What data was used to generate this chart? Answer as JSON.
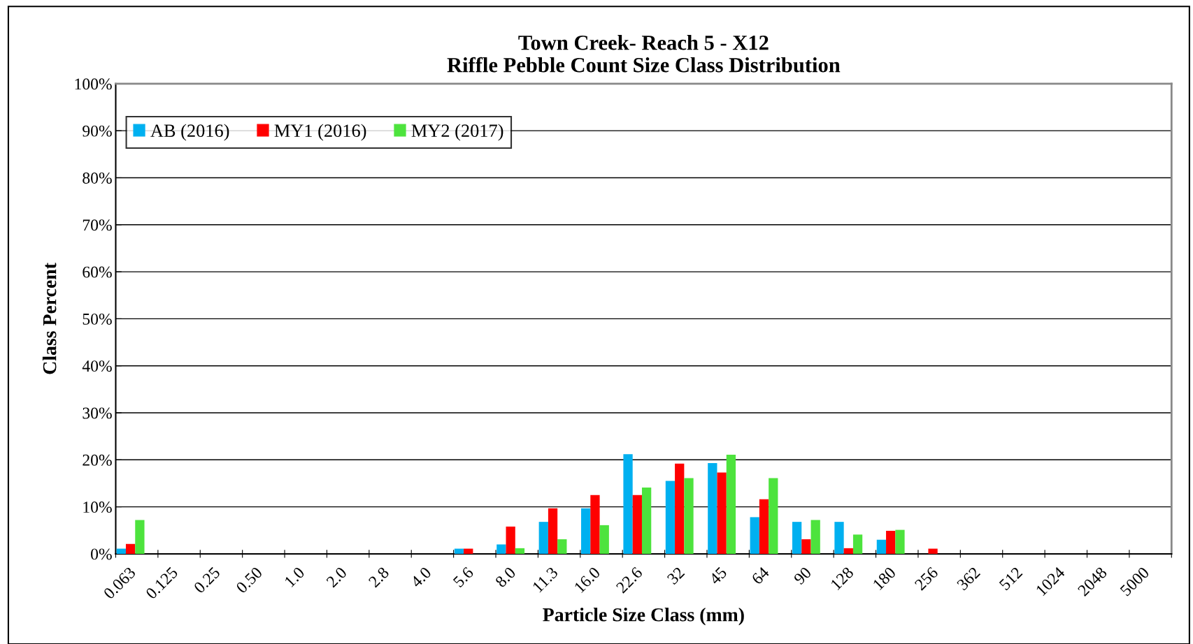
{
  "chart_data": {
    "type": "bar",
    "title": "Town Creek- Reach 5 - X12\nRiffle Pebble Count Size Class Distribution",
    "xlabel": "Particle Size Class (mm)",
    "ylabel": "Class Percent",
    "categories": [
      "0.063",
      "0.125",
      "0.25",
      "0.50",
      "1.0",
      "2.0",
      "2.8",
      "4.0",
      "5.6",
      "8.0",
      "11.3",
      "16.0",
      "22.6",
      "32",
      "45",
      "64",
      "90",
      "128",
      "180",
      "256",
      "362",
      "512",
      "1024",
      "2048",
      "5000"
    ],
    "series": [
      {
        "name": "AB (2016)",
        "color": "#00b0f0",
        "values": [
          1.1,
          0,
          0,
          0,
          0,
          0,
          0,
          0,
          1.1,
          2.0,
          6.8,
          9.7,
          21.2,
          15.5,
          19.3,
          7.8,
          6.8,
          6.8,
          3.0,
          0,
          0,
          0,
          0,
          0,
          0
        ]
      },
      {
        "name": "MY1 (2016)",
        "color": "#ff0000",
        "values": [
          2.1,
          0,
          0,
          0,
          0,
          0,
          0,
          0,
          1.1,
          5.8,
          9.7,
          12.5,
          12.5,
          19.2,
          17.3,
          11.6,
          3.1,
          1.2,
          4.9,
          1.1,
          0,
          0,
          0,
          0,
          0
        ]
      },
      {
        "name": "MY2 (2017)",
        "color": "#4de33d",
        "values": [
          7.2,
          0,
          0,
          0,
          0,
          0,
          0,
          0,
          0,
          1.2,
          3.1,
          6.1,
          14.1,
          16.1,
          21.1,
          16.1,
          7.2,
          4.1,
          5.1,
          0,
          0,
          0,
          0,
          0,
          0
        ]
      }
    ],
    "ylim": [
      0,
      100
    ],
    "yticks": [
      {
        "value": 0,
        "label": "0%"
      },
      {
        "value": 10,
        "label": "10%"
      },
      {
        "value": 20,
        "label": "20%"
      },
      {
        "value": 30,
        "label": "30%"
      },
      {
        "value": 40,
        "label": "40%"
      },
      {
        "value": 50,
        "label": "50%"
      },
      {
        "value": 60,
        "label": "60%"
      },
      {
        "value": 70,
        "label": "70%"
      },
      {
        "value": 80,
        "label": "80%"
      },
      {
        "value": 90,
        "label": "90%"
      },
      {
        "value": 100,
        "label": "100%"
      }
    ],
    "grid": "y",
    "legend": "top left"
  }
}
